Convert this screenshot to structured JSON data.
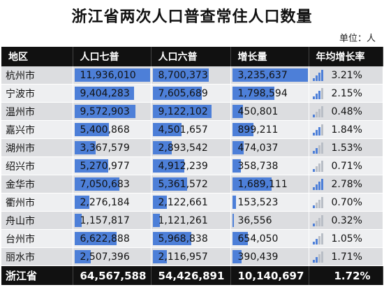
{
  "title": "浙江省两次人口普查常住人口数量",
  "unit": "单位：人",
  "columns": [
    "地区",
    "人口七普",
    "人口六普",
    "增长量",
    "年均增长率"
  ],
  "colors": {
    "header_bg": "#111111",
    "bar": "#4d7fd8",
    "icon": "#4d7fd8"
  },
  "scale": {
    "max_pop": 11936010,
    "max_growth": 3235637
  },
  "rows": [
    {
      "region": "杭州市",
      "census7": "11,936,010",
      "census6": "8,700,373",
      "growth": "3,235,637",
      "rate": "3.21%",
      "v7": 11936010,
      "v6": 8700373,
      "vg": 3235637,
      "signal": 4
    },
    {
      "region": "宁波市",
      "census7": "9,404,283",
      "census6": "7,605,689",
      "growth": "1,798,594",
      "rate": "2.15%",
      "v7": 9404283,
      "v6": 7605689,
      "vg": 1798594,
      "signal": 3
    },
    {
      "region": "温州市",
      "census7": "9,572,903",
      "census6": "9,122,102",
      "growth": "450,801",
      "rate": "0.48%",
      "v7": 9572903,
      "v6": 9122102,
      "vg": 450801,
      "signal": 1
    },
    {
      "region": "嘉兴市",
      "census7": "5,400,868",
      "census6": "4,501,657",
      "growth": "899,211",
      "rate": "1.84%",
      "v7": 5400868,
      "v6": 4501657,
      "vg": 899211,
      "signal": 3
    },
    {
      "region": "湖州市",
      "census7": "3,367,579",
      "census6": "2,893,542",
      "growth": "474,037",
      "rate": "1.53%",
      "v7": 3367579,
      "v6": 2893542,
      "vg": 474037,
      "signal": 2
    },
    {
      "region": "绍兴市",
      "census7": "5,270,977",
      "census6": "4,912,239",
      "growth": "358,738",
      "rate": "0.71%",
      "v7": 5270977,
      "v6": 4912239,
      "vg": 358738,
      "signal": 1
    },
    {
      "region": "金华市",
      "census7": "7,050,683",
      "census6": "5,361,572",
      "growth": "1,689,111",
      "rate": "2.78%",
      "v7": 7050683,
      "v6": 5361572,
      "vg": 1689111,
      "signal": 4
    },
    {
      "region": "衢州市",
      "census7": "2,276,184",
      "census6": "2,122,661",
      "growth": "153,523",
      "rate": "0.70%",
      "v7": 2276184,
      "v6": 2122661,
      "vg": 153523,
      "signal": 1
    },
    {
      "region": "舟山市",
      "census7": "1,157,817",
      "census6": "1,121,261",
      "growth": "36,556",
      "rate": "0.32%",
      "v7": 1157817,
      "v6": 1121261,
      "vg": 36556,
      "signal": 1
    },
    {
      "region": "台州市",
      "census7": "6,622,888",
      "census6": "5,968,838",
      "growth": "654,050",
      "rate": "1.05%",
      "v7": 6622888,
      "v6": 5968838,
      "vg": 654050,
      "signal": 2
    },
    {
      "region": "丽水市",
      "census7": "2,507,396",
      "census6": "2,116,957",
      "growth": "390,439",
      "rate": "1.71%",
      "v7": 2507396,
      "v6": 2116957,
      "vg": 390439,
      "signal": 2
    }
  ],
  "total": {
    "region": "浙江省",
    "census7": "64,567,588",
    "census6": "54,426,891",
    "growth": "10,140,697",
    "rate": "1.72%"
  }
}
